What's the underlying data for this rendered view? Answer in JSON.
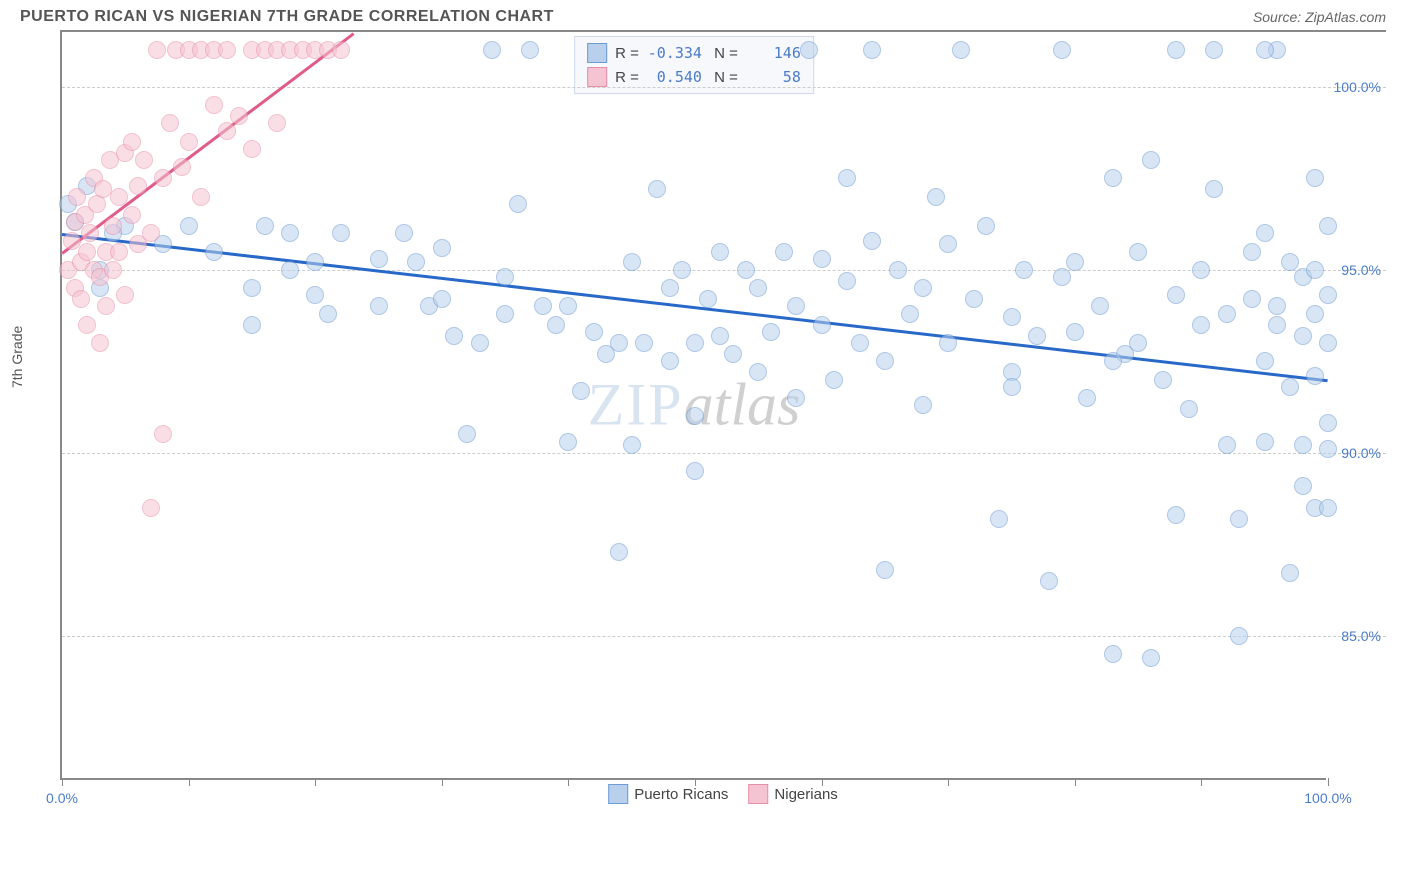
{
  "header": {
    "title": "PUERTO RICAN VS NIGERIAN 7TH GRADE CORRELATION CHART",
    "source": "Source: ZipAtlas.com"
  },
  "chart": {
    "type": "scatter",
    "y_label": "7th Grade",
    "watermark_a": "ZIP",
    "watermark_b": "atlas",
    "xlim": [
      0,
      100
    ],
    "ylim": [
      81,
      101.5
    ],
    "x_ticks": [
      0,
      10,
      20,
      30,
      40,
      50,
      60,
      70,
      80,
      90,
      100
    ],
    "x_tick_labels": {
      "0": "0.0%",
      "100": "100.0%"
    },
    "y_gridlines": [
      85,
      90,
      95,
      100
    ],
    "y_tick_labels": {
      "85": "85.0%",
      "90": "90.0%",
      "95": "95.0%",
      "100": "100.0%"
    },
    "grid_color": "#cccccc",
    "axis_color": "#888888",
    "background_color": "#ffffff",
    "tick_label_color": "#4a7bc8",
    "series": [
      {
        "name": "Puerto Ricans",
        "fill_color": "#b8d0ec",
        "stroke_color": "#6d9bd4",
        "line_color": "#2868c8",
        "r_value": "-0.334",
        "n_value": "146",
        "regression": {
          "x1": 0,
          "y1": 96.0,
          "x2": 100,
          "y2": 92.0
        },
        "points": [
          [
            1,
            96.3
          ],
          [
            3,
            95
          ],
          [
            0.5,
            96.8
          ],
          [
            2,
            97.3
          ],
          [
            5,
            96.2
          ],
          [
            3,
            94.5
          ],
          [
            4,
            96
          ],
          [
            8,
            95.7
          ],
          [
            10,
            96.2
          ],
          [
            12,
            95.5
          ],
          [
            15,
            94.5
          ],
          [
            15,
            93.5
          ],
          [
            16,
            96.2
          ],
          [
            18,
            96
          ],
          [
            18,
            95
          ],
          [
            20,
            94.3
          ],
          [
            20,
            95.2
          ],
          [
            21,
            93.8
          ],
          [
            22,
            96
          ],
          [
            25,
            95.3
          ],
          [
            25,
            94
          ],
          [
            27,
            96
          ],
          [
            28,
            95.2
          ],
          [
            29,
            94
          ],
          [
            30,
            95.6
          ],
          [
            30,
            94.2
          ],
          [
            31,
            93.2
          ],
          [
            32,
            90.5
          ],
          [
            33,
            93
          ],
          [
            34,
            101
          ],
          [
            35,
            94.8
          ],
          [
            35,
            93.8
          ],
          [
            36,
            96.8
          ],
          [
            37,
            101
          ],
          [
            38,
            94
          ],
          [
            39,
            93.5
          ],
          [
            40,
            94
          ],
          [
            40,
            90.3
          ],
          [
            41,
            91.7
          ],
          [
            42,
            93.3
          ],
          [
            43,
            92.7
          ],
          [
            44,
            93
          ],
          [
            44,
            87.3
          ],
          [
            45,
            95.2
          ],
          [
            45,
            90.2
          ],
          [
            46,
            93
          ],
          [
            47,
            97.2
          ],
          [
            48,
            94.5
          ],
          [
            48,
            92.5
          ],
          [
            49,
            95
          ],
          [
            50,
            93
          ],
          [
            50,
            91
          ],
          [
            50,
            89.5
          ],
          [
            51,
            94.2
          ],
          [
            52,
            95.5
          ],
          [
            52,
            93.2
          ],
          [
            53,
            92.7
          ],
          [
            54,
            95
          ],
          [
            55,
            92.2
          ],
          [
            55,
            94.5
          ],
          [
            56,
            93.3
          ],
          [
            57,
            95.5
          ],
          [
            58,
            94
          ],
          [
            58,
            91.5
          ],
          [
            59,
            101
          ],
          [
            60,
            95.3
          ],
          [
            60,
            93.5
          ],
          [
            61,
            92
          ],
          [
            62,
            97.5
          ],
          [
            62,
            94.7
          ],
          [
            63,
            93
          ],
          [
            64,
            101
          ],
          [
            64,
            95.8
          ],
          [
            65,
            92.5
          ],
          [
            65,
            86.8
          ],
          [
            66,
            95
          ],
          [
            67,
            93.8
          ],
          [
            68,
            94.5
          ],
          [
            68,
            91.3
          ],
          [
            69,
            97
          ],
          [
            70,
            93
          ],
          [
            70,
            95.7
          ],
          [
            71,
            101
          ],
          [
            72,
            94.2
          ],
          [
            73,
            96.2
          ],
          [
            74,
            88.2
          ],
          [
            75,
            93.7
          ],
          [
            75,
            92.2
          ],
          [
            76,
            95
          ],
          [
            77,
            93.2
          ],
          [
            78,
            86.5
          ],
          [
            79,
            101
          ],
          [
            79,
            94.8
          ],
          [
            80,
            95.2
          ],
          [
            80,
            93.3
          ],
          [
            81,
            91.5
          ],
          [
            82,
            94
          ],
          [
            83,
            97.5
          ],
          [
            83,
            84.5
          ],
          [
            84,
            92.7
          ],
          [
            85,
            95.5
          ],
          [
            85,
            93
          ],
          [
            86,
            98
          ],
          [
            86,
            84.4
          ],
          [
            87,
            92
          ],
          [
            88,
            94.3
          ],
          [
            88,
            88.3
          ],
          [
            89,
            91.2
          ],
          [
            90,
            95
          ],
          [
            90,
            93.5
          ],
          [
            91,
            101
          ],
          [
            91,
            97.2
          ],
          [
            92,
            93.8
          ],
          [
            92,
            90.2
          ],
          [
            93,
            88.2
          ],
          [
            93,
            85
          ],
          [
            94,
            95.5
          ],
          [
            94,
            94.2
          ],
          [
            95,
            96
          ],
          [
            95,
            92.5
          ],
          [
            95,
            90.3
          ],
          [
            96,
            101
          ],
          [
            96,
            94
          ],
          [
            96,
            93.5
          ],
          [
            97,
            95.2
          ],
          [
            97,
            91.8
          ],
          [
            97,
            86.7
          ],
          [
            98,
            94.8
          ],
          [
            98,
            93.2
          ],
          [
            98,
            90.2
          ],
          [
            98,
            89.1
          ],
          [
            99,
            97.5
          ],
          [
            99,
            95
          ],
          [
            99,
            93.8
          ],
          [
            99,
            92.1
          ],
          [
            99,
            88.5
          ],
          [
            100,
            96.2
          ],
          [
            100,
            94.3
          ],
          [
            100,
            93
          ],
          [
            100,
            90.8
          ],
          [
            100,
            90.1
          ],
          [
            100,
            88.5
          ],
          [
            95,
            101
          ],
          [
            75,
            91.8
          ],
          [
            83,
            92.5
          ],
          [
            88,
            101
          ]
        ]
      },
      {
        "name": "Nigerians",
        "fill_color": "#f5c4d2",
        "stroke_color": "#e88fa8",
        "line_color": "#e05a8a",
        "r_value": "0.540",
        "n_value": "58",
        "regression": {
          "x1": 0,
          "y1": 95.5,
          "x2": 23,
          "y2": 101.5
        },
        "points": [
          [
            0.5,
            95
          ],
          [
            0.8,
            95.8
          ],
          [
            1,
            96.3
          ],
          [
            1,
            94.5
          ],
          [
            1.2,
            97
          ],
          [
            1.5,
            95.2
          ],
          [
            1.5,
            94.2
          ],
          [
            1.8,
            96.5
          ],
          [
            2,
            95.5
          ],
          [
            2,
            93.5
          ],
          [
            2.2,
            96
          ],
          [
            2.5,
            97.5
          ],
          [
            2.5,
            95
          ],
          [
            2.8,
            96.8
          ],
          [
            3,
            94.8
          ],
          [
            3,
            93
          ],
          [
            3.2,
            97.2
          ],
          [
            3.5,
            95.5
          ],
          [
            3.5,
            94
          ],
          [
            3.8,
            98
          ],
          [
            4,
            96.2
          ],
          [
            4,
            95
          ],
          [
            4.5,
            97
          ],
          [
            4.5,
            95.5
          ],
          [
            5,
            98.2
          ],
          [
            5,
            94.3
          ],
          [
            5.5,
            98.5
          ],
          [
            5.5,
            96.5
          ],
          [
            6,
            97.3
          ],
          [
            6,
            95.7
          ],
          [
            6.5,
            98
          ],
          [
            7,
            96
          ],
          [
            7,
            88.5
          ],
          [
            7.5,
            101
          ],
          [
            8,
            97.5
          ],
          [
            8,
            90.5
          ],
          [
            8.5,
            99
          ],
          [
            9,
            101
          ],
          [
            9.5,
            97.8
          ],
          [
            10,
            101
          ],
          [
            10,
            98.5
          ],
          [
            11,
            101
          ],
          [
            11,
            97
          ],
          [
            12,
            99.5
          ],
          [
            12,
            101
          ],
          [
            13,
            101
          ],
          [
            13,
            98.8
          ],
          [
            14,
            99.2
          ],
          [
            15,
            101
          ],
          [
            15,
            98.3
          ],
          [
            16,
            101
          ],
          [
            17,
            101
          ],
          [
            17,
            99
          ],
          [
            18,
            101
          ],
          [
            19,
            101
          ],
          [
            20,
            101
          ],
          [
            21,
            101
          ],
          [
            22,
            101
          ]
        ]
      }
    ],
    "legend_bottom": [
      {
        "label": "Puerto Ricans",
        "fill": "#b8d0ec",
        "stroke": "#6d9bd4"
      },
      {
        "label": "Nigerians",
        "fill": "#f5c4d2",
        "stroke": "#e88fa8"
      }
    ]
  }
}
